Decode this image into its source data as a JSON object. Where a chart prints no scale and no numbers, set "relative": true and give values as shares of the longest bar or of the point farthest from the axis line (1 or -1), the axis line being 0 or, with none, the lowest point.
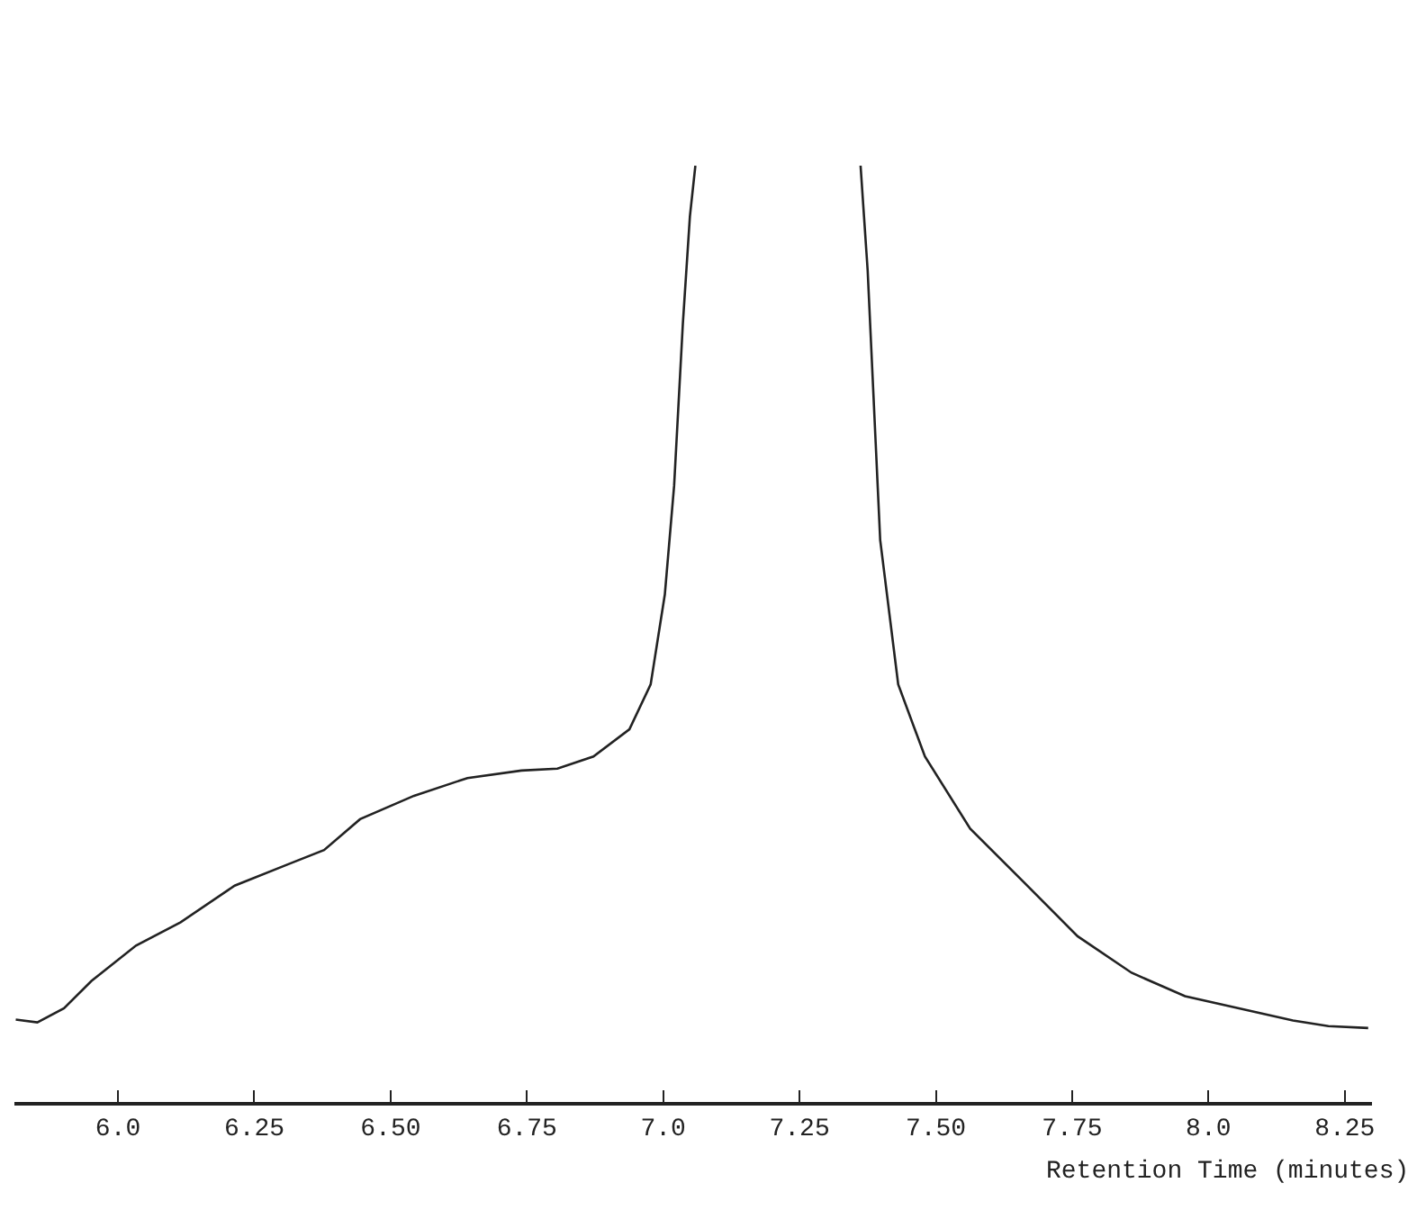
{
  "chart_data": {
    "type": "line",
    "relative": true,
    "xlabel": "Retention Time (minutes)",
    "x": [
      5.8125,
      5.852,
      5.901,
      5.951,
      6.033,
      6.115,
      6.214,
      6.3125,
      6.378,
      6.444,
      6.543,
      6.641,
      6.74,
      6.806,
      6.872,
      6.938,
      6.977,
      7.003,
      7.02,
      7.036,
      7.049,
      7.059,
      7.2,
      7.362,
      7.375,
      7.398,
      7.431,
      7.48,
      7.563,
      7.661,
      7.76,
      7.859,
      7.957,
      8.056,
      8.155,
      8.22,
      8.293
    ],
    "series": [
      {
        "color": "#222222",
        "values": [
          0.088,
          0.085,
          0.1,
          0.129,
          0.167,
          0.192,
          0.231,
          0.254,
          0.269,
          0.302,
          0.327,
          0.346,
          0.354,
          0.356,
          0.369,
          0.398,
          0.446,
          0.542,
          0.658,
          0.831,
          0.946,
          1,
          null,
          1,
          0.888,
          0.6,
          0.446,
          0.369,
          0.292,
          0.235,
          0.177,
          0.138,
          0.113,
          0.1,
          0.087,
          0.081,
          0.079
        ]
      }
    ],
    "xlim": [
      5.81,
      8.3
    ],
    "xticks": [
      {
        "value": 6,
        "label": "6.0"
      },
      {
        "value": 6.25,
        "label": "6.25"
      },
      {
        "value": 6.5,
        "label": "6.50"
      },
      {
        "value": 6.75,
        "label": "6.75"
      },
      {
        "value": 7,
        "label": "7.0"
      },
      {
        "value": 7.25,
        "label": "7.25"
      },
      {
        "value": 7.5,
        "label": "7.50"
      },
      {
        "value": 7.75,
        "label": "7.75"
      },
      {
        "value": 8,
        "label": "8.0"
      },
      {
        "value": 8.25,
        "label": "8.25"
      }
    ],
    "marker": "none",
    "line_style": "solid"
  }
}
